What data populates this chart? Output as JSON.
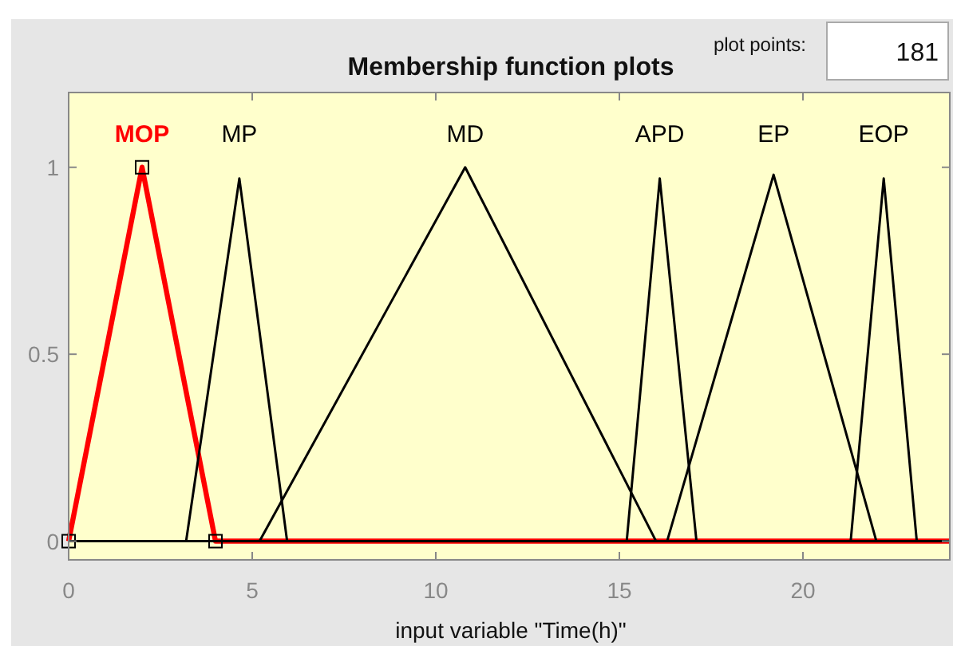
{
  "chart_data": {
    "type": "line",
    "title": "Membership function plots",
    "xlabel": "input variable \"Time(h)\"",
    "annotations": [
      "plot points:",
      "181"
    ],
    "xlim": [
      0,
      24
    ],
    "xticks": [
      0,
      5,
      10,
      15,
      20
    ],
    "ylim": [
      -0.05,
      1.2
    ],
    "yticks": [
      0,
      0.5,
      1
    ],
    "grid": false,
    "marker": "none",
    "series": [
      {
        "name": "MOP",
        "color": "#ff0000",
        "x": [
          0,
          2,
          4,
          24
        ],
        "values": [
          0,
          1,
          0,
          0
        ]
      },
      {
        "name": "MP",
        "color": "#000000",
        "x": [
          0,
          3.2,
          4.65,
          5.95,
          24
        ],
        "values": [
          0,
          0,
          0.97,
          0,
          0
        ]
      },
      {
        "name": "MD",
        "color": "#000000",
        "x": [
          0,
          5.2,
          10.8,
          16,
          24
        ],
        "values": [
          0,
          0,
          1,
          0,
          0
        ]
      },
      {
        "name": "APD",
        "color": "#000000",
        "x": [
          0,
          15.2,
          16.1,
          17.1,
          24
        ],
        "values": [
          0,
          0,
          0.97,
          0,
          0
        ]
      },
      {
        "name": "EP",
        "color": "#000000",
        "x": [
          0,
          16.3,
          19.2,
          22,
          24
        ],
        "values": [
          0,
          0,
          0.98,
          0,
          0
        ]
      },
      {
        "name": "EOP",
        "color": "#000000",
        "x": [
          0,
          21.3,
          22.2,
          23.1,
          24
        ],
        "values": [
          0,
          0,
          0.97,
          0,
          0
        ]
      },
      {
        "type": "scatter",
        "color": "#000000",
        "marker": "square",
        "x": [
          0,
          2,
          4
        ],
        "values": [
          0,
          1,
          0
        ]
      }
    ]
  }
}
